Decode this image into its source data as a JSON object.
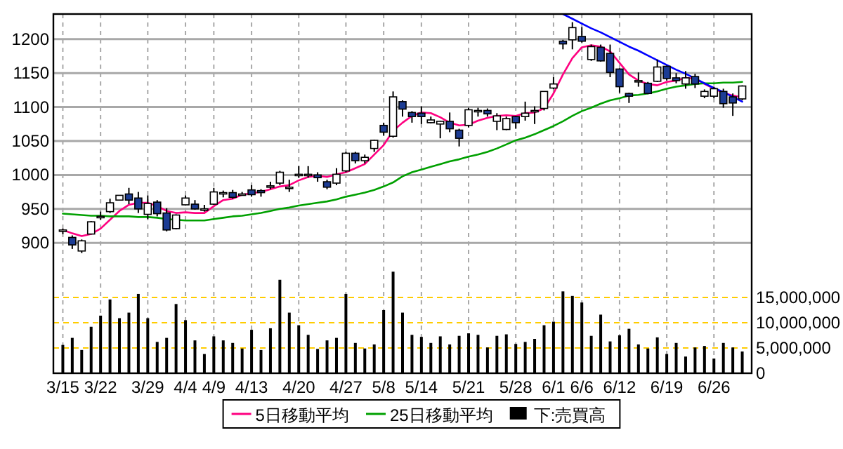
{
  "chart_data": {
    "type": "candlestick",
    "categories": [
      "3/15",
      null,
      null,
      null,
      "3/22",
      null,
      null,
      null,
      null,
      "3/29",
      null,
      null,
      null,
      "4/4",
      null,
      null,
      "4/9",
      null,
      null,
      null,
      "4/13",
      null,
      null,
      null,
      null,
      "4/20",
      null,
      null,
      null,
      null,
      "4/27",
      null,
      null,
      null,
      "5/8",
      null,
      null,
      null,
      "5/14",
      null,
      null,
      null,
      null,
      "5/21",
      null,
      null,
      null,
      null,
      "5/28",
      null,
      null,
      null,
      "6/1",
      null,
      null,
      "6/6",
      null,
      null,
      null,
      "6/12",
      null,
      null,
      null,
      null,
      "6/19",
      null,
      null,
      null,
      null,
      "6/26",
      null,
      null,
      null
    ],
    "ohlc": [
      [
        919,
        921,
        913,
        919
      ],
      [
        908,
        911,
        891,
        897
      ],
      [
        888,
        905,
        885,
        903
      ],
      [
        913,
        932,
        913,
        931
      ],
      [
        939,
        946,
        934,
        939
      ],
      [
        946,
        965,
        944,
        959
      ],
      [
        963,
        970,
        963,
        970
      ],
      [
        972,
        981,
        957,
        963
      ],
      [
        966,
        975,
        944,
        950
      ],
      [
        942,
        970,
        935,
        958
      ],
      [
        960,
        963,
        939,
        943
      ],
      [
        944,
        951,
        917,
        919
      ],
      [
        921,
        942,
        920,
        941
      ],
      [
        956,
        970,
        955,
        966
      ],
      [
        957,
        963,
        949,
        950
      ],
      [
        950,
        956,
        946,
        950
      ],
      [
        957,
        981,
        956,
        975
      ],
      [
        974,
        977,
        967,
        974
      ],
      [
        974,
        978,
        965,
        967
      ],
      [
        972,
        975,
        970,
        972
      ],
      [
        978,
        985,
        968,
        971
      ],
      [
        977,
        979,
        968,
        974
      ],
      [
        984,
        990,
        979,
        984
      ],
      [
        988,
        1006,
        985,
        1004
      ],
      [
        982,
        993,
        975,
        982
      ],
      [
        1001,
        1013,
        996,
        1001
      ],
      [
        1001,
        1013,
        996,
        1001
      ],
      [
        1000,
        1004,
        990,
        996
      ],
      [
        990,
        993,
        979,
        982
      ],
      [
        988,
        1010,
        985,
        1001
      ],
      [
        1006,
        1034,
        1004,
        1032
      ],
      [
        1032,
        1034,
        1017,
        1021
      ],
      [
        1021,
        1030,
        1017,
        1026
      ],
      [
        1039,
        1052,
        1034,
        1051
      ],
      [
        1073,
        1077,
        1058,
        1063
      ],
      [
        1057,
        1123,
        1055,
        1115
      ],
      [
        1108,
        1110,
        1086,
        1097
      ],
      [
        1092,
        1094,
        1077,
        1086
      ],
      [
        1091,
        1101,
        1075,
        1086
      ],
      [
        1077,
        1086,
        1076,
        1081
      ],
      [
        1075,
        1080,
        1054,
        1079
      ],
      [
        1079,
        1092,
        1063,
        1068
      ],
      [
        1066,
        1068,
        1042,
        1054
      ],
      [
        1073,
        1099,
        1070,
        1096
      ],
      [
        1095,
        1099,
        1086,
        1095
      ],
      [
        1095,
        1098,
        1086,
        1090
      ],
      [
        1079,
        1091,
        1066,
        1087
      ],
      [
        1067,
        1086,
        1066,
        1083
      ],
      [
        1086,
        1087,
        1068,
        1077
      ],
      [
        1086,
        1108,
        1080,
        1091
      ],
      [
        1095,
        1101,
        1075,
        1095
      ],
      [
        1098,
        1123,
        1095,
        1123
      ],
      [
        1128,
        1144,
        1126,
        1134
      ],
      [
        1197,
        1199,
        1185,
        1193
      ],
      [
        1199,
        1225,
        1185,
        1217
      ],
      [
        1204,
        1218,
        1195,
        1197
      ],
      [
        1170,
        1192,
        1168,
        1189
      ],
      [
        1188,
        1192,
        1167,
        1168
      ],
      [
        1179,
        1192,
        1144,
        1151
      ],
      [
        1156,
        1157,
        1121,
        1130
      ],
      [
        1120,
        1121,
        1106,
        1116
      ],
      [
        1139,
        1151,
        1130,
        1139
      ],
      [
        1135,
        1137,
        1119,
        1120
      ],
      [
        1138,
        1170,
        1137,
        1159
      ],
      [
        1160,
        1161,
        1139,
        1142
      ],
      [
        1143,
        1150,
        1135,
        1139
      ],
      [
        1134,
        1153,
        1127,
        1143
      ],
      [
        1145,
        1149,
        1128,
        1134
      ],
      [
        1116,
        1126,
        1113,
        1123
      ],
      [
        1116,
        1130,
        1113,
        1127
      ],
      [
        1123,
        1127,
        1099,
        1105
      ],
      [
        1115,
        1120,
        1087,
        1106
      ],
      [
        1112,
        1132,
        1110,
        1131
      ]
    ],
    "colors": [
      "#ffffff",
      "#1c3c94",
      "#ffffff",
      "#ffffff",
      "#ffffff",
      "#ffffff",
      "#ffffff",
      "#1c3c94",
      "#1c3c94",
      "#ffffff",
      "#1c3c94",
      "#1c3c94",
      "#ffffff",
      "#ffffff",
      "#1c3c94",
      "#ffffff",
      "#ffffff",
      "#ffffff",
      "#1c3c94",
      "#ffffff",
      "#1c3c94",
      "#1c3c94",
      "#ffffff",
      "#ffffff",
      "#ffffff",
      "#ffffff",
      "#ffffff",
      "#1c3c94",
      "#1c3c94",
      "#ffffff",
      "#ffffff",
      "#1c3c94",
      "#ffffff",
      "#ffffff",
      "#1c3c94",
      "#ffffff",
      "#1c3c94",
      "#1c3c94",
      "#1c3c94",
      "#ffffff",
      "#ffffff",
      "#1c3c94",
      "#1c3c94",
      "#ffffff",
      "#ffffff",
      "#1c3c94",
      "#ffffff",
      "#ffffff",
      "#1c3c94",
      "#ffffff",
      "#ffffff",
      "#ffffff",
      "#ffffff",
      "#1c3c94",
      "#ffffff",
      "#1c3c94",
      "#ffffff",
      "#1c3c94",
      "#1c3c94",
      "#1c3c94",
      "#1c3c94",
      "#ffffff",
      "#1c3c94",
      "#ffffff",
      "#1c3c94",
      "#1c3c94",
      "#ffffff",
      "#1c3c94",
      "#ffffff",
      "#ffffff",
      "#1c3c94",
      "#1c3c94",
      "#ffffff"
    ],
    "series": [
      {
        "name": "5日移動平均",
        "type": "line",
        "color": "#ff0080",
        "values": [
          919,
          914,
          910,
          913,
          921,
          934,
          947,
          956,
          959,
          959,
          954,
          947,
          944,
          945,
          944,
          944,
          954,
          963,
          965,
          971,
          973,
          975,
          979,
          983,
          985,
          992,
          997,
          999,
          997,
          1001,
          1004,
          1010,
          1016,
          1030,
          1044,
          1065,
          1077,
          1087,
          1092,
          1091,
          1085,
          1077,
          1073,
          1074,
          1080,
          1084,
          1087,
          1088,
          1087,
          1091,
          1092,
          1098,
          1120,
          1148,
          1172,
          1188,
          1191,
          1189,
          1182,
          1165,
          1148,
          1139,
          1134,
          1132,
          1137,
          1139,
          1143,
          1142,
          1134,
          1127,
          1121,
          1117,
          1114
        ]
      },
      {
        "name": "25日移動平均",
        "type": "line",
        "color": "#00a000",
        "values": [
          943,
          942,
          941,
          940,
          940,
          939,
          939,
          939,
          938,
          938,
          937,
          935,
          934,
          933,
          933,
          933,
          935,
          937,
          939,
          940,
          942,
          944,
          947,
          950,
          952,
          955,
          957,
          959,
          961,
          964,
          968,
          971,
          974,
          978,
          983,
          989,
          998,
          1004,
          1008,
          1012,
          1016,
          1020,
          1023,
          1027,
          1030,
          1034,
          1039,
          1045,
          1051,
          1055,
          1060,
          1066,
          1072,
          1079,
          1087,
          1094,
          1099,
          1105,
          1110,
          1113,
          1117,
          1118,
          1120,
          1123,
          1127,
          1130,
          1132,
          1134,
          1135,
          1135,
          1136,
          1136,
          1137
        ]
      },
      {
        "type": "line",
        "color": "#0000ff",
        "values": [
          null,
          null,
          null,
          null,
          null,
          null,
          null,
          null,
          null,
          null,
          null,
          null,
          null,
          null,
          null,
          null,
          null,
          null,
          null,
          null,
          null,
          null,
          null,
          null,
          null,
          null,
          null,
          null,
          null,
          null,
          null,
          null,
          null,
          null,
          null,
          null,
          null,
          null,
          null,
          null,
          null,
          null,
          null,
          null,
          null,
          null,
          null,
          null,
          null,
          null,
          null,
          null,
          null,
          1237,
          1230,
          1223,
          1216,
          1210,
          1203,
          1196,
          1189,
          1183,
          1176,
          1169,
          1162,
          1155,
          1149,
          1142,
          1135,
          1128,
          1122,
          1115,
          1108
        ]
      },
      {
        "name": "下:売買高",
        "type": "bar",
        "axis": "y2",
        "color": "#000000",
        "values": [
          5600000,
          7000000,
          4600000,
          9200000,
          11400000,
          14600000,
          10900000,
          12000000,
          15700000,
          10900000,
          6200000,
          7000000,
          13700000,
          10500000,
          6500000,
          3800000,
          7300000,
          6500000,
          6000000,
          4900000,
          8600000,
          4600000,
          8900000,
          18500000,
          12000000,
          9500000,
          7600000,
          4800000,
          6500000,
          7000000,
          15700000,
          6000000,
          4900000,
          5700000,
          12500000,
          20100000,
          12000000,
          7600000,
          7200000,
          6000000,
          7300000,
          5700000,
          7400000,
          7900000,
          7600000,
          5100000,
          7400000,
          7700000,
          5800000,
          6200000,
          6800000,
          9500000,
          10200000,
          16200000,
          15300000,
          14000000,
          7400000,
          11600000,
          6300000,
          7500000,
          8800000,
          5700000,
          4900000,
          7100000,
          3800000,
          6000000,
          3300000,
          5100000,
          5400000,
          2900000,
          6000000,
          5100000,
          4300000
        ]
      }
    ],
    "ylim": [
      708,
      1237
    ],
    "yticks": [
      900,
      950,
      1000,
      1050,
      1100,
      1150,
      1200
    ],
    "y2lim": [
      0,
      71100000
    ],
    "y2ticks": [
      {
        "value": 0,
        "label": "0"
      },
      {
        "value": 5000000,
        "label": "5,000,000"
      },
      {
        "value": 10000000,
        "label": "10,000,000"
      },
      {
        "value": 15000000,
        "label": "15,000,000"
      }
    ],
    "grid": true,
    "legend": "bottom"
  }
}
